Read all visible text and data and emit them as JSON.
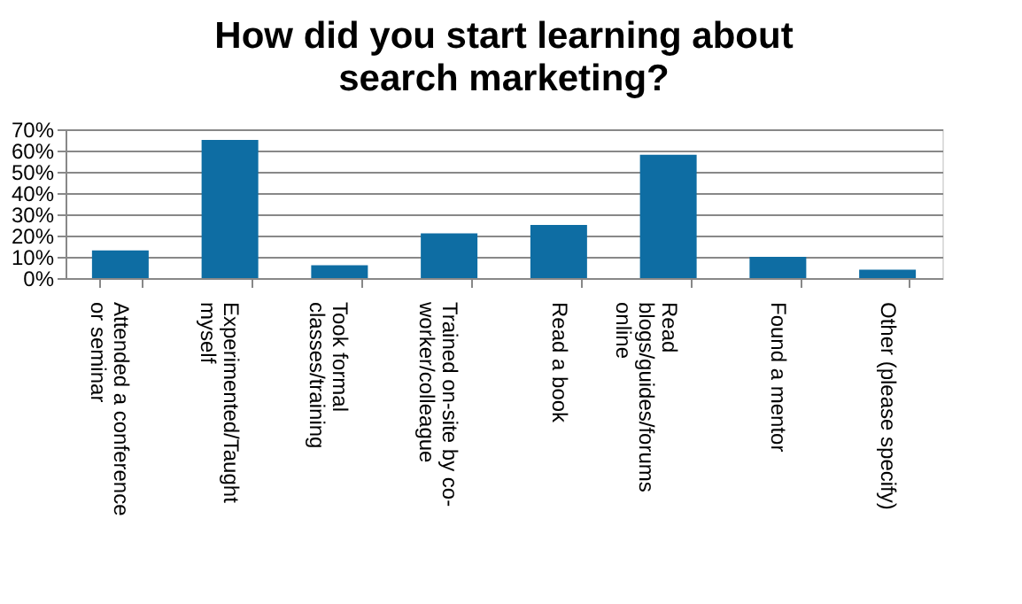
{
  "chart_data": {
    "type": "bar",
    "title": "How did you start learning about search marketing?",
    "categories": [
      "Attended a conference or seminar",
      "Experimented/Taught myself",
      "Took formal classes/training",
      "Trained on-site by co-worker/colleague",
      "Read a book",
      "Read blogs/guides/forums online",
      "Found a mentor",
      "Other (please specify)"
    ],
    "values": [
      13,
      65,
      6,
      21,
      25,
      58,
      10,
      4
    ],
    "color": "#0e6da3",
    "ylim": [
      0,
      70
    ],
    "yticks": [
      {
        "value": 0,
        "label": "0%"
      },
      {
        "value": 10,
        "label": "10%"
      },
      {
        "value": 20,
        "label": "20%"
      },
      {
        "value": 30,
        "label": "30%"
      },
      {
        "value": 40,
        "label": "40%"
      },
      {
        "value": 50,
        "label": "50%"
      },
      {
        "value": 60,
        "label": "60%"
      },
      {
        "value": 70,
        "label": "70%"
      }
    ],
    "grid": "y"
  }
}
